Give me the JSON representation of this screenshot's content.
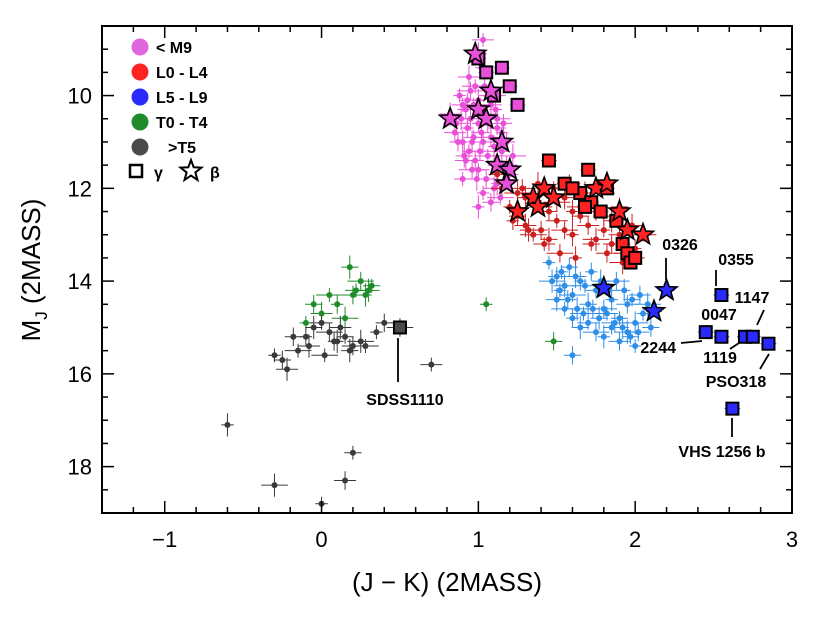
{
  "chart_data": {
    "type": "scatter",
    "title": "",
    "xlabel": "(J − K) (2MASS)",
    "ylabel_main": "M",
    "ylabel_sub": "J",
    "ylabel_rest": " (2MASS)",
    "xlim": [
      -1.4,
      3.0
    ],
    "ylim": [
      19.0,
      8.5
    ],
    "xticks": [
      -1,
      0,
      1,
      2,
      3
    ],
    "xtick_labels": [
      "−1",
      "0",
      "1",
      "2",
      "3"
    ],
    "yticks": [
      10,
      12,
      14,
      16,
      18
    ],
    "ytick_labels": [
      "10",
      "12",
      "14",
      "16",
      "18"
    ],
    "legend": [
      {
        "label": "< M9",
        "color": "#e066e0",
        "marker": "circle"
      },
      {
        "label": "L0 - L4",
        "color": "#ff2222",
        "marker": "circle"
      },
      {
        "label": "L5 - L9",
        "color": "#2a2aff",
        "marker": "circle"
      },
      {
        "label": "T0 - T4",
        "color": "#1e8c2a",
        "marker": "circle"
      },
      {
        "label": ">T5",
        "color": "#4a4a4a",
        "marker": "circle"
      }
    ],
    "legend_gravity": {
      "square_label": "γ",
      "star_label": "β"
    },
    "field_series": [
      {
        "name": "< M9",
        "color": "#e94fd8",
        "points": [
          [
            0.88,
            10.0
          ],
          [
            0.92,
            10.3
          ],
          [
            0.95,
            10.5
          ],
          [
            0.97,
            10.2
          ],
          [
            1.0,
            10.6
          ],
          [
            1.02,
            10.8
          ],
          [
            1.05,
            10.4
          ],
          [
            1.08,
            10.9
          ],
          [
            1.1,
            11.1
          ],
          [
            1.12,
            10.7
          ],
          [
            0.85,
            10.8
          ],
          [
            0.9,
            11.0
          ],
          [
            0.94,
            11.2
          ],
          [
            0.98,
            11.4
          ],
          [
            1.03,
            11.0
          ],
          [
            1.06,
            11.3
          ],
          [
            1.1,
            11.5
          ],
          [
            1.15,
            11.2
          ],
          [
            0.9,
            10.2
          ],
          [
            0.95,
            9.9
          ],
          [
            1.0,
            10.1
          ],
          [
            1.04,
            9.8
          ],
          [
            1.08,
            10.2
          ],
          [
            1.12,
            10.5
          ],
          [
            1.15,
            10.8
          ],
          [
            1.18,
            11.0
          ],
          [
            0.82,
            10.4
          ],
          [
            0.86,
            10.6
          ],
          [
            0.93,
            10.7
          ],
          [
            0.96,
            11.0
          ],
          [
            1.0,
            11.6
          ],
          [
            1.05,
            11.8
          ],
          [
            1.12,
            11.9
          ],
          [
            1.2,
            11.7
          ],
          [
            0.92,
            11.4
          ],
          [
            0.99,
            11.8
          ],
          [
            1.03,
            12.1
          ],
          [
            1.08,
            12.3
          ],
          [
            1.1,
            12.0
          ],
          [
            1.14,
            12.2
          ],
          [
            0.87,
            11.0
          ],
          [
            0.91,
            11.3
          ],
          [
            0.97,
            10.9
          ],
          [
            1.01,
            11.2
          ],
          [
            0.89,
            10.5
          ],
          [
            0.93,
            10.1
          ],
          [
            1.06,
            10.6
          ],
          [
            1.09,
            10.0
          ],
          [
            1.11,
            10.3
          ],
          [
            1.16,
            10.6
          ],
          [
            0.94,
            9.6
          ],
          [
            0.98,
            9.8
          ],
          [
            1.02,
            9.4
          ],
          [
            1.0,
            9.1
          ],
          [
            1.03,
            8.8
          ],
          [
            0.96,
            11.6
          ],
          [
            1.0,
            12.4
          ],
          [
            0.9,
            11.8
          ],
          [
            1.18,
            11.5
          ],
          [
            1.22,
            11.3
          ]
        ]
      },
      {
        "name": "L0 - L4",
        "color": "#cc1f1f",
        "points": [
          [
            1.2,
            12.4
          ],
          [
            1.25,
            12.6
          ],
          [
            1.3,
            12.8
          ],
          [
            1.35,
            13.0
          ],
          [
            1.4,
            12.9
          ],
          [
            1.45,
            13.1
          ],
          [
            1.5,
            12.7
          ],
          [
            1.55,
            12.9
          ],
          [
            1.6,
            13.0
          ],
          [
            1.65,
            12.6
          ],
          [
            1.7,
            12.8
          ],
          [
            1.75,
            13.1
          ],
          [
            1.8,
            12.9
          ],
          [
            1.85,
            13.2
          ],
          [
            1.9,
            13.0
          ],
          [
            1.95,
            13.4
          ],
          [
            2.0,
            13.3
          ],
          [
            1.3,
            12.2
          ],
          [
            1.4,
            12.4
          ],
          [
            1.5,
            12.3
          ],
          [
            1.6,
            12.5
          ],
          [
            1.7,
            12.3
          ],
          [
            1.8,
            12.6
          ],
          [
            1.25,
            12.1
          ],
          [
            1.35,
            12.3
          ],
          [
            1.45,
            12.5
          ],
          [
            1.55,
            12.2
          ],
          [
            1.65,
            12.4
          ],
          [
            1.75,
            12.5
          ],
          [
            1.85,
            12.7
          ],
          [
            1.15,
            12.0
          ],
          [
            1.28,
            12.0
          ],
          [
            1.38,
            11.9
          ],
          [
            1.48,
            12.0
          ],
          [
            1.58,
            11.9
          ],
          [
            1.68,
            12.1
          ],
          [
            1.78,
            12.0
          ],
          [
            1.9,
            12.4
          ],
          [
            1.98,
            12.8
          ],
          [
            2.05,
            13.0
          ],
          [
            1.22,
            12.7
          ],
          [
            1.32,
            12.9
          ],
          [
            1.42,
            13.2
          ],
          [
            1.52,
            13.4
          ],
          [
            1.62,
            13.5
          ],
          [
            1.72,
            13.2
          ],
          [
            1.82,
            13.4
          ],
          [
            1.92,
            13.6
          ],
          [
            2.02,
            13.5
          ],
          [
            1.12,
            11.7
          ]
        ]
      },
      {
        "name": "L5 - L9",
        "color": "#2f8fe8",
        "points": [
          [
            1.45,
            13.6
          ],
          [
            1.5,
            13.9
          ],
          [
            1.55,
            14.1
          ],
          [
            1.6,
            14.3
          ],
          [
            1.65,
            14.0
          ],
          [
            1.7,
            14.5
          ],
          [
            1.75,
            14.2
          ],
          [
            1.8,
            14.6
          ],
          [
            1.85,
            14.4
          ],
          [
            1.9,
            14.8
          ],
          [
            1.95,
            14.5
          ],
          [
            2.0,
            14.9
          ],
          [
            2.05,
            14.7
          ],
          [
            2.1,
            15.0
          ],
          [
            1.5,
            14.4
          ],
          [
            1.55,
            14.6
          ],
          [
            1.6,
            14.8
          ],
          [
            1.65,
            15.0
          ],
          [
            1.7,
            14.9
          ],
          [
            1.75,
            15.1
          ],
          [
            1.8,
            15.2
          ],
          [
            1.85,
            15.0
          ],
          [
            1.9,
            15.3
          ],
          [
            1.95,
            15.1
          ],
          [
            2.0,
            15.4
          ],
          [
            1.58,
            13.7
          ],
          [
            1.62,
            13.9
          ],
          [
            1.68,
            14.1
          ],
          [
            1.72,
            13.8
          ],
          [
            1.78,
            14.0
          ],
          [
            1.83,
            14.2
          ],
          [
            1.88,
            14.0
          ],
          [
            1.93,
            14.2
          ],
          [
            1.98,
            14.4
          ],
          [
            2.03,
            14.3
          ],
          [
            2.08,
            14.5
          ],
          [
            1.52,
            14.2
          ],
          [
            1.57,
            14.4
          ],
          [
            1.63,
            14.6
          ],
          [
            1.67,
            14.7
          ],
          [
            1.73,
            14.6
          ],
          [
            1.77,
            14.8
          ],
          [
            1.82,
            14.7
          ],
          [
            1.87,
            14.9
          ],
          [
            1.92,
            15.0
          ],
          [
            1.97,
            15.2
          ],
          [
            2.02,
            15.1
          ],
          [
            1.47,
            14.0
          ],
          [
            1.53,
            13.8
          ],
          [
            1.6,
            15.6
          ]
        ]
      },
      {
        "name": "T0 - T4",
        "color": "#1e8c2a",
        "points": [
          [
            -0.1,
            14.9
          ],
          [
            -0.05,
            14.5
          ],
          [
            0.0,
            14.7
          ],
          [
            0.05,
            14.3
          ],
          [
            0.1,
            14.5
          ],
          [
            0.18,
            13.7
          ],
          [
            0.22,
            14.2
          ],
          [
            0.25,
            14.0
          ],
          [
            0.28,
            14.3
          ],
          [
            0.32,
            14.1
          ],
          [
            0.2,
            14.3
          ],
          [
            0.15,
            14.8
          ],
          [
            1.05,
            14.5
          ],
          [
            1.48,
            15.3
          ],
          [
            0.3,
            14.2
          ]
        ]
      },
      {
        "name": ">T5",
        "color": "#3a3a3a",
        "points": [
          [
            -0.3,
            15.6
          ],
          [
            -0.25,
            15.7
          ],
          [
            -0.22,
            15.9
          ],
          [
            -0.15,
            15.5
          ],
          [
            -0.1,
            15.2
          ],
          [
            -0.05,
            15.0
          ],
          [
            0.0,
            14.9
          ],
          [
            0.05,
            15.1
          ],
          [
            0.1,
            15.3
          ],
          [
            0.15,
            15.2
          ],
          [
            0.2,
            15.4
          ],
          [
            0.25,
            15.3
          ],
          [
            0.35,
            15.1
          ],
          [
            0.4,
            14.9
          ],
          [
            -0.08,
            15.4
          ],
          [
            0.02,
            15.6
          ],
          [
            0.08,
            15.3
          ],
          [
            0.18,
            15.5
          ],
          [
            0.7,
            15.8
          ],
          [
            0.5,
            15.0
          ],
          [
            -0.6,
            17.1
          ],
          [
            0.2,
            17.7
          ],
          [
            0.15,
            18.3
          ],
          [
            -0.3,
            18.4
          ],
          [
            0.0,
            18.8
          ],
          [
            -0.18,
            15.2
          ],
          [
            0.12,
            15.0
          ],
          [
            0.28,
            15.4
          ]
        ]
      }
    ],
    "gamma_series": [
      {
        "color": "#e94fd8",
        "points": [
          [
            1.0,
            9.2
          ],
          [
            1.05,
            9.5
          ],
          [
            1.15,
            9.4
          ],
          [
            1.2,
            9.8
          ],
          [
            1.25,
            10.2
          ],
          [
            1.1,
            10.0
          ]
        ]
      },
      {
        "color": "#ff2222",
        "points": [
          [
            1.45,
            11.4
          ],
          [
            1.55,
            11.9
          ],
          [
            1.65,
            12.1
          ],
          [
            1.7,
            11.6
          ],
          [
            1.72,
            12.3
          ],
          [
            1.78,
            12.5
          ],
          [
            1.82,
            12.0
          ],
          [
            1.88,
            12.7
          ],
          [
            1.92,
            13.2
          ],
          [
            1.95,
            13.4
          ],
          [
            1.97,
            13.6
          ],
          [
            2.0,
            13.5
          ],
          [
            1.68,
            12.4
          ],
          [
            1.6,
            12.0
          ]
        ]
      },
      {
        "color": "#2a2aff",
        "points": [
          [
            2.55,
            14.3
          ],
          [
            2.45,
            15.1
          ],
          [
            2.55,
            15.2
          ],
          [
            2.7,
            15.2
          ],
          [
            2.75,
            15.2
          ],
          [
            2.85,
            15.35
          ],
          [
            2.62,
            16.75
          ]
        ]
      },
      {
        "color": "#4a4a4a",
        "points": [
          [
            0.5,
            15.0
          ]
        ]
      }
    ],
    "beta_series": [
      {
        "color": "#e94fd8",
        "points": [
          [
            0.98,
            9.1
          ],
          [
            1.0,
            10.3
          ],
          [
            0.82,
            10.5
          ],
          [
            1.08,
            9.9
          ],
          [
            1.15,
            11.0
          ],
          [
            1.12,
            11.5
          ],
          [
            1.2,
            11.6
          ],
          [
            1.18,
            11.9
          ],
          [
            1.05,
            10.5
          ]
        ]
      },
      {
        "color": "#ff2222",
        "points": [
          [
            1.25,
            12.5
          ],
          [
            1.35,
            12.2
          ],
          [
            1.38,
            12.4
          ],
          [
            1.42,
            12.0
          ],
          [
            1.48,
            12.2
          ],
          [
            1.75,
            12.0
          ],
          [
            1.82,
            11.9
          ],
          [
            1.95,
            12.9
          ],
          [
            2.05,
            13.0
          ],
          [
            1.9,
            12.5
          ]
        ]
      },
      {
        "color": "#2a2aff",
        "points": [
          [
            1.8,
            14.15
          ],
          [
            2.2,
            14.2
          ],
          [
            2.12,
            14.65
          ]
        ]
      }
    ],
    "annotations": [
      {
        "text": "0326",
        "x": 2.21,
        "y": 14.2
      },
      {
        "text": "0355",
        "x": 2.55,
        "y": 14.3
      },
      {
        "text": "1147",
        "x": 2.78,
        "y": 15.2
      },
      {
        "text": "0047",
        "x": 2.55,
        "y": 15.1
      },
      {
        "text": "2244",
        "x": 2.45,
        "y": 15.15
      },
      {
        "text": "1119",
        "x": 2.7,
        "y": 15.2
      },
      {
        "text": "PSO318",
        "x": 2.85,
        "y": 15.35
      },
      {
        "text": "SDSS1110",
        "x": 0.5,
        "y": 15.0
      },
      {
        "text": "VHS 1256 b",
        "x": 2.62,
        "y": 16.75
      }
    ]
  }
}
